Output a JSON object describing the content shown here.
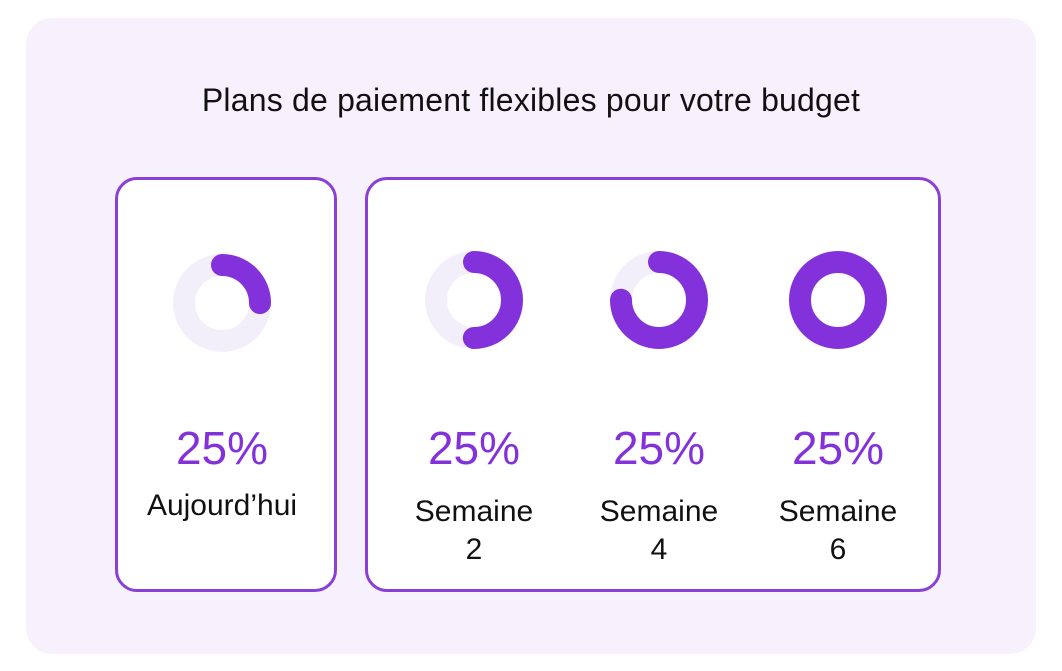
{
  "title": "Plans de paiement flexibles pour votre budget",
  "colors": {
    "accent": "#8332db",
    "border": "#8a3fd6",
    "track": "#f3effa",
    "panel": "#f7f1fd"
  },
  "today": {
    "percent": "25%",
    "label": "Aujourd’hui",
    "progress": 0.25
  },
  "weeks": [
    {
      "percent": "25%",
      "label_line1": "Semaine",
      "label_line2": "2",
      "progress": 0.5
    },
    {
      "percent": "25%",
      "label_line1": "Semaine",
      "label_line2": "4",
      "progress": 0.75
    },
    {
      "percent": "25%",
      "label_line1": "Semaine",
      "label_line2": "6",
      "progress": 1.0
    }
  ]
}
